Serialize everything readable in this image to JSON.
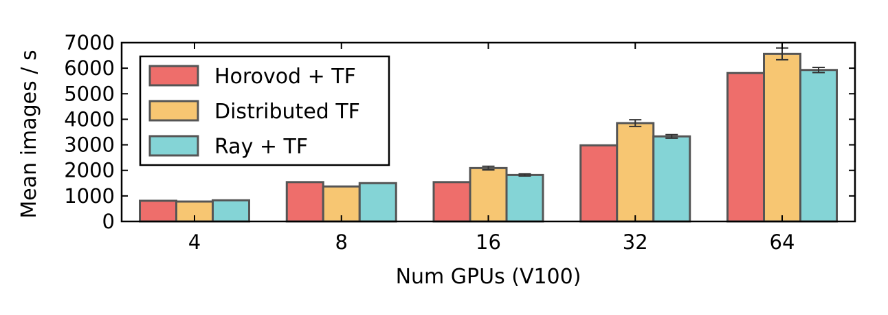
{
  "chart_data": {
    "type": "bar",
    "title": "",
    "xlabel": "Num GPUs (V100)",
    "ylabel": "Mean images / s",
    "categories": [
      "4",
      "8",
      "16",
      "32",
      "64"
    ],
    "ylim": [
      0,
      7000
    ],
    "yticks": [
      0,
      1000,
      2000,
      3000,
      4000,
      5000,
      6000,
      7000
    ],
    "grid": false,
    "legend_position": "top-left",
    "series": [
      {
        "name": "Horovod + TF",
        "color": "#ee6e6b",
        "values": [
          810,
          1540,
          1540,
          2980,
          5810
        ],
        "errors": [
          0,
          0,
          0,
          0,
          0
        ]
      },
      {
        "name": "Distributed TF",
        "color": "#f7c672",
        "values": [
          780,
          1370,
          2090,
          3850,
          6560
        ],
        "errors": [
          0,
          0,
          70,
          130,
          230
        ]
      },
      {
        "name": "Ray + TF",
        "color": "#84d4d6",
        "values": [
          830,
          1500,
          1820,
          3330,
          5930
        ],
        "errors": [
          0,
          0,
          40,
          70,
          100
        ]
      }
    ]
  }
}
